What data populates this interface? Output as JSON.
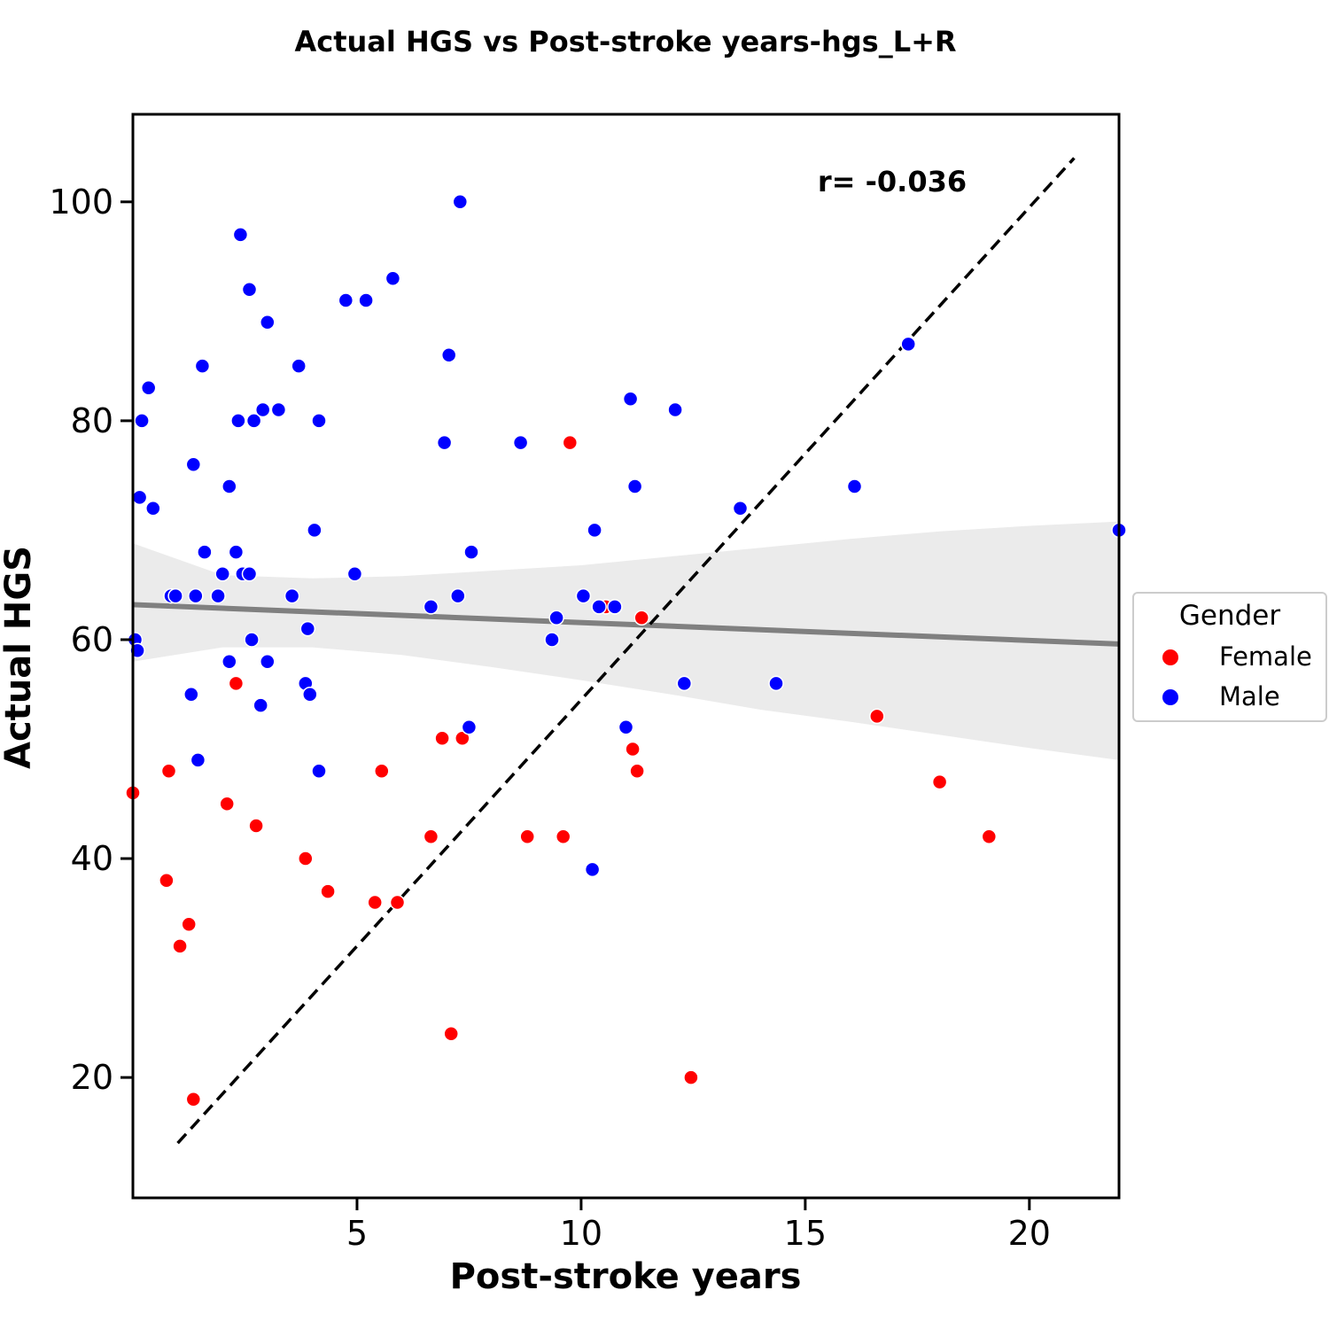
{
  "chart_data": {
    "type": "scatter",
    "title": "Actual HGS vs Post-stroke years-hgs_L+R",
    "xlabel": "Post-stroke years",
    "ylabel": "Actual HGS",
    "xlim": [
      0,
      22
    ],
    "ylim": [
      9,
      108
    ],
    "xticks": [
      5,
      10,
      15,
      20
    ],
    "yticks": [
      20,
      40,
      60,
      80,
      100
    ],
    "grid": false,
    "annotation": "r= -0.036",
    "legend": {
      "title": "Gender",
      "placement": "right-outside",
      "entries": [
        {
          "label": "Female",
          "color": "#ff0000"
        },
        {
          "label": "Male",
          "color": "#0000ff"
        }
      ]
    },
    "series": [
      {
        "name": "Female",
        "color": "#ff0000",
        "points": [
          [
            0.0,
            46
          ],
          [
            0.75,
            38
          ],
          [
            0.8,
            48
          ],
          [
            1.05,
            32
          ],
          [
            1.25,
            34
          ],
          [
            1.35,
            18
          ],
          [
            2.1,
            45
          ],
          [
            2.3,
            56
          ],
          [
            2.75,
            43
          ],
          [
            3.85,
            40
          ],
          [
            4.35,
            37
          ],
          [
            5.4,
            36
          ],
          [
            5.55,
            48
          ],
          [
            5.9,
            36
          ],
          [
            6.65,
            42
          ],
          [
            6.9,
            51
          ],
          [
            7.1,
            24
          ],
          [
            7.35,
            51
          ],
          [
            8.8,
            42
          ],
          [
            9.6,
            42
          ],
          [
            9.75,
            78
          ],
          [
            10.55,
            63
          ],
          [
            11.15,
            50
          ],
          [
            11.25,
            48
          ],
          [
            11.35,
            62
          ],
          [
            12.45,
            20
          ],
          [
            16.6,
            53
          ],
          [
            18.0,
            47
          ],
          [
            19.1,
            42
          ]
        ]
      },
      {
        "name": "Male",
        "color": "#0000ff",
        "points": [
          [
            0.05,
            60
          ],
          [
            0.1,
            59
          ],
          [
            0.15,
            73
          ],
          [
            0.2,
            80
          ],
          [
            0.35,
            83
          ],
          [
            0.45,
            72
          ],
          [
            0.85,
            64
          ],
          [
            0.95,
            64
          ],
          [
            1.3,
            55
          ],
          [
            1.35,
            76
          ],
          [
            1.4,
            64
          ],
          [
            1.45,
            49
          ],
          [
            1.55,
            85
          ],
          [
            1.6,
            68
          ],
          [
            1.9,
            64
          ],
          [
            2.0,
            66
          ],
          [
            2.15,
            58
          ],
          [
            2.15,
            74
          ],
          [
            2.3,
            68
          ],
          [
            2.35,
            80
          ],
          [
            2.4,
            97
          ],
          [
            2.45,
            66
          ],
          [
            2.6,
            92
          ],
          [
            2.6,
            66
          ],
          [
            2.65,
            60
          ],
          [
            2.7,
            80
          ],
          [
            2.85,
            54
          ],
          [
            2.9,
            81
          ],
          [
            3.0,
            89
          ],
          [
            3.0,
            58
          ],
          [
            3.25,
            81
          ],
          [
            3.55,
            64
          ],
          [
            3.7,
            85
          ],
          [
            3.85,
            56
          ],
          [
            3.9,
            61
          ],
          [
            3.95,
            55
          ],
          [
            4.05,
            70
          ],
          [
            4.15,
            48
          ],
          [
            4.15,
            80
          ],
          [
            4.75,
            91
          ],
          [
            4.95,
            66
          ],
          [
            5.2,
            91
          ],
          [
            5.8,
            93
          ],
          [
            6.65,
            63
          ],
          [
            6.95,
            78
          ],
          [
            7.05,
            86
          ],
          [
            7.25,
            64
          ],
          [
            7.3,
            100
          ],
          [
            7.5,
            52
          ],
          [
            7.55,
            68
          ],
          [
            8.65,
            78
          ],
          [
            9.35,
            60
          ],
          [
            9.45,
            62
          ],
          [
            10.05,
            64
          ],
          [
            10.25,
            39
          ],
          [
            10.3,
            70
          ],
          [
            10.4,
            63
          ],
          [
            10.75,
            63
          ],
          [
            11.0,
            52
          ],
          [
            11.1,
            82
          ],
          [
            11.2,
            74
          ],
          [
            12.1,
            81
          ],
          [
            12.3,
            56
          ],
          [
            13.55,
            72
          ],
          [
            14.35,
            56
          ],
          [
            16.1,
            74
          ],
          [
            17.3,
            87
          ],
          [
            22.0,
            70
          ]
        ]
      }
    ],
    "regression": {
      "color": "#808080",
      "line": [
        [
          0,
          63.2
        ],
        [
          22,
          59.6
        ]
      ],
      "ci_upper": [
        [
          0,
          68.8
        ],
        [
          2,
          65.9
        ],
        [
          4,
          65.6
        ],
        [
          6,
          65.8
        ],
        [
          8,
          66.3
        ],
        [
          10,
          66.8
        ],
        [
          12,
          67.6
        ],
        [
          14,
          68.4
        ],
        [
          16,
          69.2
        ],
        [
          18,
          69.9
        ],
        [
          20,
          70.4
        ],
        [
          22,
          70.8
        ]
      ],
      "ci_lower": [
        [
          0,
          58.0
        ],
        [
          2,
          59.3
        ],
        [
          4,
          59.3
        ],
        [
          6,
          58.6
        ],
        [
          8,
          57.5
        ],
        [
          10,
          56.3
        ],
        [
          12,
          55.0
        ],
        [
          14,
          53.6
        ],
        [
          16,
          52.5
        ],
        [
          18,
          51.3
        ],
        [
          20,
          50.1
        ],
        [
          22,
          49.0
        ]
      ]
    },
    "identity_line": {
      "style": "dashed",
      "color": "#000000",
      "points": [
        [
          1.0,
          14.0
        ],
        [
          21.0,
          104.0
        ]
      ]
    }
  }
}
